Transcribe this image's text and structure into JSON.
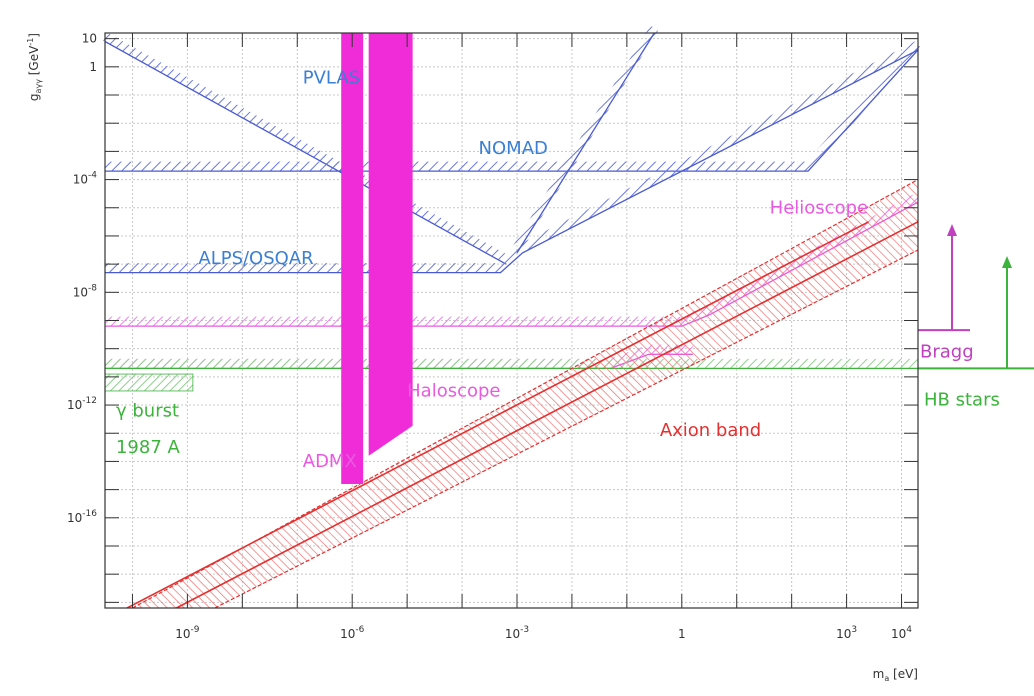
{
  "chart_data": {
    "type": "area",
    "title": "",
    "xlabel": "m_a [eV]",
    "ylabel": "g_aγγ [GeV^-1]",
    "x_scale": "log",
    "y_scale": "log",
    "xlim_log10": [
      -10.5,
      4.3
    ],
    "ylim_log10": [
      -19.2,
      1.2
    ],
    "grid": true,
    "x_ticks": [
      {
        "log10": -9,
        "label": "10",
        "exp": "-9"
      },
      {
        "log10": -6,
        "label": "10",
        "exp": "-6"
      },
      {
        "log10": -3,
        "label": "10",
        "exp": "-3"
      },
      {
        "log10": 0,
        "label": "1",
        "exp": ""
      },
      {
        "log10": 3,
        "label": "10",
        "exp": "3"
      },
      {
        "log10": 4,
        "label": "10",
        "exp": "4"
      }
    ],
    "y_ticks": [
      {
        "log10": 1,
        "label": "10",
        "exp": ""
      },
      {
        "log10": 0,
        "label": "1",
        "exp": ""
      },
      {
        "log10": -4,
        "label": "10",
        "exp": "-4"
      },
      {
        "log10": -8,
        "label": "10",
        "exp": "-8"
      },
      {
        "log10": -12,
        "label": "10",
        "exp": "-12"
      },
      {
        "log10": -16,
        "label": "10",
        "exp": "-16"
      }
    ],
    "axis_labels": {
      "x_main": "m",
      "x_sub": "a",
      "x_unit": " [eV]",
      "y_main": "g",
      "y_sub": "aγγ",
      "y_unit": " [GeV",
      "y_exp": "-1",
      "y_close": "]"
    },
    "series": [
      {
        "name": "PVLAS",
        "color": "#4a5bd0",
        "kind": "limit-line",
        "points_log10": [
          [
            -10.5,
            0.9
          ],
          [
            -3.2,
            -7.0
          ]
        ]
      },
      {
        "name": "NOMAD",
        "color": "#4a5bd0",
        "kind": "limit-line",
        "points_log10": [
          [
            -10.5,
            -3.7
          ],
          [
            2.3,
            -3.7
          ],
          [
            4.3,
            0.6
          ]
        ]
      },
      {
        "name": "ALPS/OSQAR",
        "color": "#4a5bd0",
        "kind": "limit-line",
        "points_log10": [
          [
            -10.5,
            -7.3
          ],
          [
            -3.3,
            -7.3
          ],
          [
            -2.9,
            -6.6
          ],
          [
            4.3,
            0.6
          ]
        ]
      },
      {
        "name": "",
        "color": "#4a5bd0",
        "kind": "limit-line",
        "points_log10": [
          [
            -3.0,
            -6.6
          ],
          [
            -0.5,
            1.2
          ]
        ]
      },
      {
        "name": "Helioscope",
        "color": "#e85ae0",
        "kind": "limit-line",
        "points_log10": [
          [
            -10.5,
            -9.2
          ],
          [
            0.0,
            -9.2
          ],
          [
            0.5,
            -8.8
          ],
          [
            4.3,
            -4.8
          ]
        ]
      },
      {
        "name": "",
        "color": "#e85ae0",
        "kind": "limit-line",
        "points_log10": [
          [
            -10.5,
            -10.7
          ],
          [
            -1.3,
            -10.7
          ],
          [
            -0.6,
            -10.2
          ],
          [
            0.2,
            -10.2
          ]
        ]
      },
      {
        "name": "HB stars",
        "color": "#3cb43c",
        "kind": "limit-line",
        "points_log10": [
          [
            -10.5,
            -10.7
          ],
          [
            4.3,
            -10.7
          ]
        ]
      },
      {
        "name": "Axion band",
        "color": "#e53030",
        "kind": "band",
        "lower_log10": [
          [
            -8.5,
            -19.2
          ],
          [
            4.3,
            -6.5
          ]
        ],
        "upper_log10": [
          [
            -10.0,
            -19.2
          ],
          [
            4.3,
            -4.0
          ]
        ],
        "center_log10": [
          [
            -9.2,
            -19.2
          ],
          [
            4.3,
            -5.5
          ]
        ]
      },
      {
        "name": "ADMX",
        "color": "#f02bd8",
        "kind": "region",
        "x_range_log10": [
          -6.2,
          -5.8
        ],
        "y_range_log10": [
          -14.8,
          1.2
        ]
      },
      {
        "name": "Haloscope",
        "color": "#f02bd8",
        "kind": "region",
        "x_range_log10": [
          -5.7,
          -4.9
        ],
        "y_range_log10": [
          -13.8,
          1.2
        ]
      },
      {
        "name": "γ burst 1987 A",
        "color": "#3cb43c",
        "kind": "region",
        "x_range_log10": [
          -10.5,
          -8.9
        ],
        "y_range_log10": [
          -11.5,
          -10.9
        ]
      }
    ],
    "annotations": [
      {
        "text": "PVLAS",
        "color": "#3b7fd4",
        "x_log10": -6.9,
        "y_log10": -0.6
      },
      {
        "text": "NOMAD",
        "color": "#3b7fd4",
        "x_log10": -3.7,
        "y_log10": -3.1
      },
      {
        "text": "ALPS/OSQAR",
        "color": "#3b7fd4",
        "x_log10": -8.8,
        "y_log10": -7.0
      },
      {
        "text": "Helioscope",
        "color": "#e85ae0",
        "x_log10": 1.6,
        "y_log10": -5.2
      },
      {
        "text": "Haloscope",
        "color": "#e85ae0",
        "x_log10": -5.0,
        "y_log10": -11.7
      },
      {
        "text": "ADMX",
        "color": "#e85ae0",
        "x_log10": -6.9,
        "y_log10": -14.2
      },
      {
        "text": "Axion band",
        "color": "#e53030",
        "x_log10": -0.4,
        "y_log10": -13.1
      },
      {
        "text": "γ burst",
        "color": "#3cb43c",
        "x_log10": -10.3,
        "y_log10": -12.4
      },
      {
        "text": "1987 A",
        "color": "#3cb43c",
        "x_log10": -10.3,
        "y_log10": -13.7
      },
      {
        "text": "Bragg",
        "color": "#c040c0",
        "outside": "right",
        "y_log10": -10.1
      },
      {
        "text": "HB stars",
        "color": "#3cb43c",
        "outside": "right",
        "y_log10": -11.8
      }
    ]
  }
}
